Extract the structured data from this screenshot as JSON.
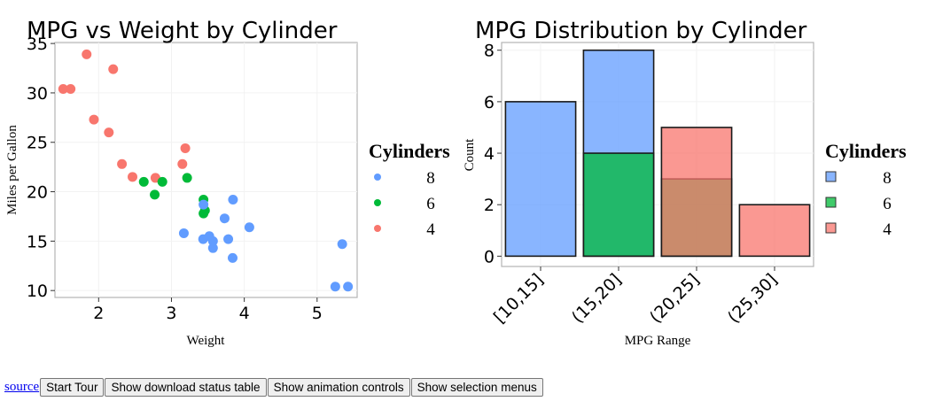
{
  "colors": {
    "8": "#619CFF",
    "6": "#00BA38",
    "4": "#F8766D"
  },
  "chart_data": [
    {
      "type": "scatter",
      "title": "MPG vs Weight by Cylinder",
      "xlabel": "Weight",
      "ylabel": "Miles per Gallon",
      "xlim": [
        1.4,
        5.55
      ],
      "ylim": [
        9.3,
        35.1
      ],
      "xticks": [
        2,
        3,
        4,
        5
      ],
      "yticks": [
        10,
        15,
        20,
        25,
        30,
        35
      ],
      "legend": {
        "title": "Cylinders",
        "entries": [
          "8",
          "6",
          "4"
        ],
        "placement": "right"
      },
      "grid": true,
      "series": [
        {
          "name": "4",
          "points": [
            [
              1.513,
              30.4
            ],
            [
              1.615,
              30.4
            ],
            [
              1.835,
              33.9
            ],
            [
              1.935,
              27.3
            ],
            [
              2.14,
              26.0
            ],
            [
              2.2,
              32.4
            ],
            [
              2.32,
              22.8
            ],
            [
              2.465,
              21.5
            ],
            [
              2.78,
              21.4
            ],
            [
              3.15,
              22.8
            ],
            [
              3.19,
              24.4
            ]
          ]
        },
        {
          "name": "6",
          "points": [
            [
              2.62,
              21.0
            ],
            [
              2.77,
              19.7
            ],
            [
              2.875,
              21.0
            ],
            [
              3.215,
              21.4
            ],
            [
              3.44,
              19.2
            ],
            [
              3.44,
              17.8
            ],
            [
              3.46,
              18.1
            ]
          ]
        },
        {
          "name": "8",
          "points": [
            [
              3.17,
              15.8
            ],
            [
              3.435,
              15.2
            ],
            [
              3.44,
              18.7
            ],
            [
              3.52,
              15.5
            ],
            [
              3.57,
              14.3
            ],
            [
              3.57,
              15.0
            ],
            [
              3.73,
              17.3
            ],
            [
              3.78,
              15.2
            ],
            [
              3.84,
              13.3
            ],
            [
              3.845,
              19.2
            ],
            [
              4.07,
              16.4
            ],
            [
              5.25,
              10.4
            ],
            [
              5.345,
              14.7
            ],
            [
              5.424,
              10.4
            ]
          ]
        }
      ]
    },
    {
      "type": "bar",
      "title": "MPG Distribution by Cylinder",
      "xlabel": "MPG Range",
      "ylabel": "Count",
      "ylim": [
        -0.4,
        8.3
      ],
      "yticks": [
        0,
        2,
        4,
        6,
        8
      ],
      "categories": [
        "[10,15]",
        "(15,20]",
        "(20,25]",
        "(25,30]"
      ],
      "legend": {
        "title": "Cylinders",
        "entries": [
          "8",
          "6",
          "4"
        ],
        "placement": "right"
      },
      "grid": true,
      "series": [
        {
          "name": "8",
          "values": [
            6,
            8,
            0,
            0
          ]
        },
        {
          "name": "6",
          "values": [
            0,
            4,
            3,
            0
          ]
        },
        {
          "name": "4",
          "values": [
            0,
            0,
            5,
            2
          ]
        }
      ]
    }
  ],
  "toolbar": {
    "source_link": "source",
    "start_tour": "Start Tour",
    "download_status": "Show download status table",
    "animation_controls": "Show animation controls",
    "selection_menus": "Show selection menus"
  }
}
